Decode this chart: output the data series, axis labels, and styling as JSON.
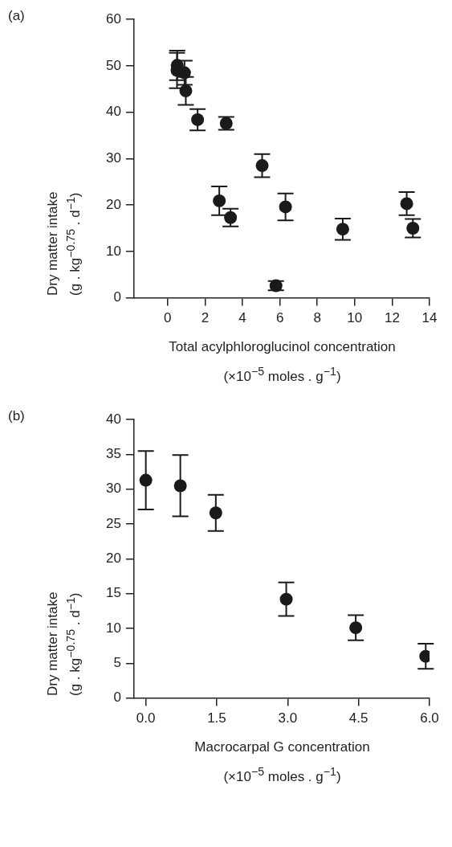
{
  "chart_data": [
    {
      "type": "scatter",
      "annotations": [
        "(a)"
      ],
      "xlabel": "Total acylphloroglucinol concentration (×10$^{−5}$ moles . g$^{−1}$)",
      "ylabel": "Dry matter intake (g . kg$^{−0.75}$ . d$^{−1}$)",
      "xlim": [
        -1.8,
        14
      ],
      "xticks": [
        0,
        2,
        4,
        6,
        8,
        10,
        12,
        14
      ],
      "ylim": [
        0,
        60
      ],
      "yticks": [
        0,
        10,
        20,
        30,
        40,
        50,
        60
      ],
      "grid": false,
      "legend": false,
      "marker": "circle",
      "series": [
        {
          "color": "#1a1a1a",
          "x": [
            0.51,
            0.5,
            0.9,
            0.97,
            1.6,
            3.13,
            2.76,
            3.36,
            5.05,
            5.79,
            6.3,
            9.36,
            12.78,
            13.11
          ],
          "values": [
            50.1,
            49.0,
            48.5,
            44.6,
            38.4,
            37.6,
            20.9,
            17.3,
            28.5,
            2.6,
            19.6,
            14.8,
            20.3,
            15.0
          ],
          "errors": [
            3.2,
            3.8,
            2.6,
            3.0,
            2.3,
            1.4,
            3.1,
            1.9,
            2.5,
            1.0,
            2.9,
            2.3,
            2.5,
            2.0
          ]
        }
      ]
    },
    {
      "type": "scatter",
      "annotations": [
        "(b)"
      ],
      "xlabel": "Macrocarpal G concentration (×10$^{−5}$ moles . g$^{−1}$)",
      "ylabel": "Dry matter intake (g . kg$^{−0.75}$ . d$^{−1}$)",
      "xlim": [
        -0.25,
        6.0
      ],
      "xticks": [
        {
          "value": 0,
          "label": "0.0"
        },
        1.5,
        {
          "value": 3,
          "label": "3.0"
        },
        4.5,
        {
          "value": 6,
          "label": "6.0"
        }
      ],
      "ylim": [
        0,
        40
      ],
      "yticks": [
        0,
        5,
        10,
        15,
        20,
        25,
        30,
        35,
        40
      ],
      "grid": false,
      "legend": false,
      "marker": "circle",
      "series": [
        {
          "color": "#1a1a1a",
          "x": [
            0,
            0.73,
            1.48,
            2.97,
            4.44,
            5.92
          ],
          "values": [
            31.3,
            30.5,
            26.6,
            14.2,
            10.1,
            6.0
          ],
          "errors": [
            4.2,
            4.4,
            2.6,
            2.4,
            1.8,
            1.8
          ]
        }
      ]
    }
  ]
}
